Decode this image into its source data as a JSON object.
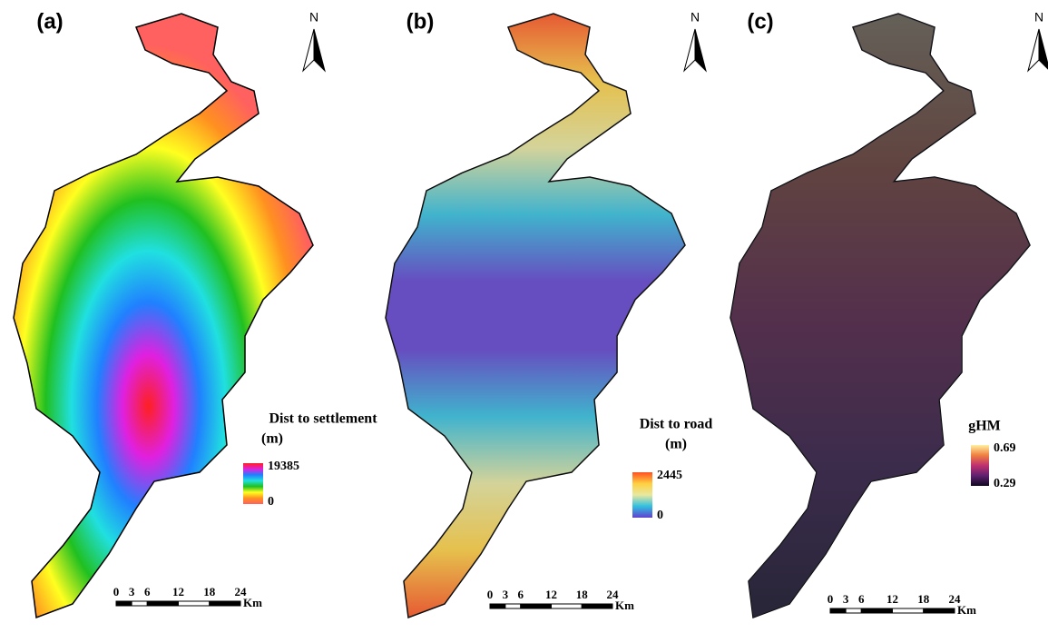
{
  "panels": [
    {
      "label": "(a)",
      "north": "N",
      "legend": {
        "title": "Dist to settlement",
        "unit": "(m)",
        "max": "19385",
        "min": "0",
        "colors": [
          "#ff2020",
          "#e020e0",
          "#2080ff",
          "#20e0e0",
          "#20c020",
          "#ffff20",
          "#ff9020",
          "#ff6060"
        ]
      },
      "scale": {
        "ticks": [
          "0",
          "3",
          "6",
          "12",
          "18",
          "24"
        ],
        "unit": "Km"
      }
    },
    {
      "label": "(b)",
      "north": "N",
      "legend": {
        "title": "Dist to road",
        "unit": "(m)",
        "max": "2445",
        "min": "0",
        "colors": [
          "#ff5020",
          "#ffd040",
          "#e8e8a0",
          "#30c0e0",
          "#6040d0"
        ]
      },
      "scale": {
        "ticks": [
          "0",
          "3",
          "6",
          "12",
          "18",
          "24"
        ],
        "unit": "Km"
      }
    },
    {
      "label": "(c)",
      "north": "N",
      "legend": {
        "title": "gHM",
        "max": "0.69",
        "min": "0.29",
        "colors": [
          "#fff0a0",
          "#f08040",
          "#c03070",
          "#602070",
          "#100820"
        ]
      },
      "scale": {
        "ticks": [
          "0",
          "3",
          "6",
          "12",
          "18",
          "24"
        ],
        "unit": "Km"
      }
    }
  ]
}
